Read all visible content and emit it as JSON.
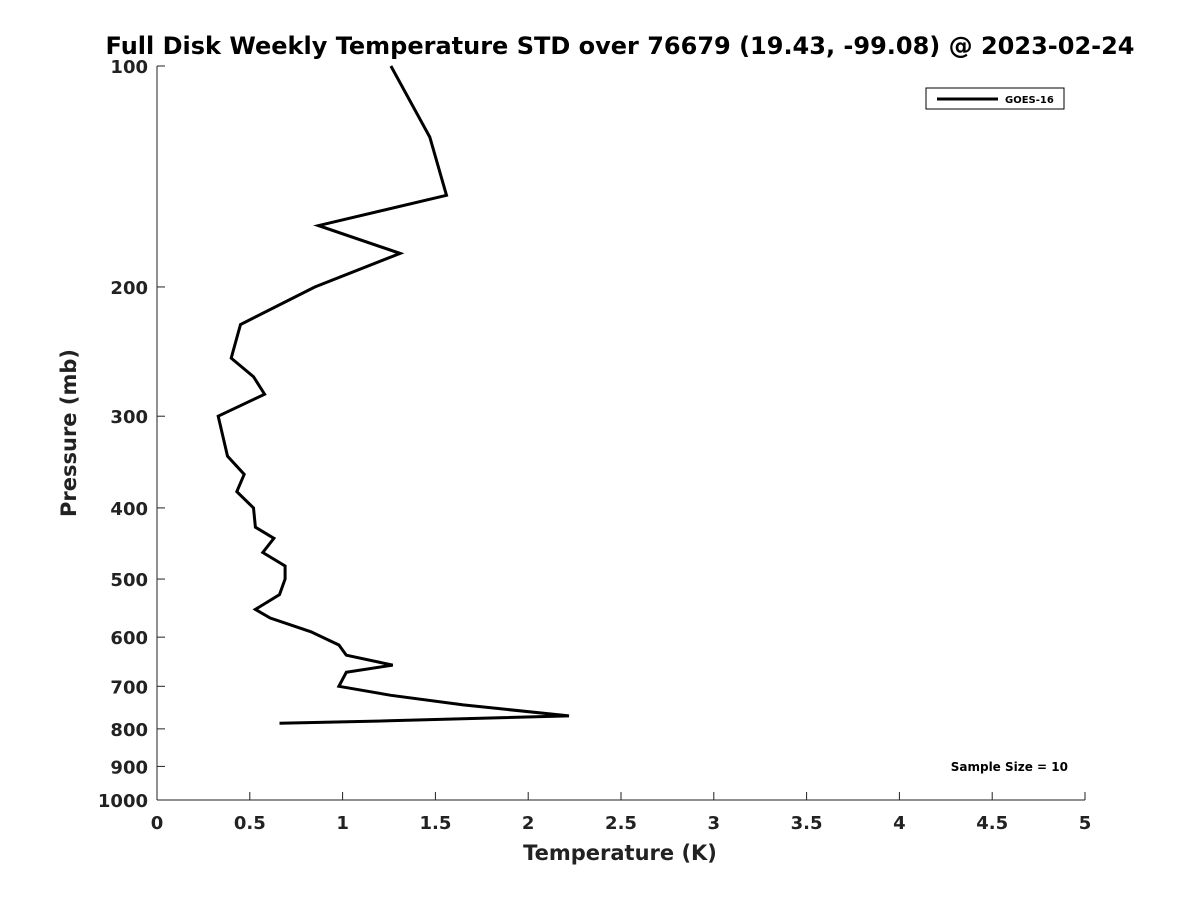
{
  "chart_data": {
    "type": "line",
    "title": "Full Disk Weekly Temperature STD over 76679 (19.43, -99.08) @ 2023-02-24",
    "xlabel": "Temperature (K)",
    "ylabel": "Pressure (mb)",
    "xlim": [
      0,
      5
    ],
    "ylim": [
      100,
      1000
    ],
    "yscale": "log",
    "y_reversed": true,
    "xticks": [
      0,
      0.5,
      1,
      1.5,
      2,
      2.5,
      3,
      3.5,
      4,
      4.5,
      5
    ],
    "xtick_labels": [
      "0",
      "0.5",
      "1",
      "1.5",
      "2",
      "2.5",
      "3",
      "3.5",
      "4",
      "4.5",
      "5"
    ],
    "yticks": [
      100,
      200,
      300,
      400,
      500,
      600,
      700,
      800,
      900,
      1000
    ],
    "ytick_labels": [
      "100",
      "200",
      "300",
      "400",
      "500",
      "600",
      "700",
      "800",
      "900",
      "1000"
    ],
    "grid": false,
    "legend_position": "top-right",
    "series": [
      {
        "name": "GOES-16",
        "color": "#000000",
        "points": [
          {
            "x": 1.26,
            "p": 100
          },
          {
            "x": 1.47,
            "p": 125
          },
          {
            "x": 1.56,
            "p": 150
          },
          {
            "x": 0.87,
            "p": 165
          },
          {
            "x": 1.31,
            "p": 180
          },
          {
            "x": 0.85,
            "p": 200
          },
          {
            "x": 0.45,
            "p": 225
          },
          {
            "x": 0.4,
            "p": 250
          },
          {
            "x": 0.52,
            "p": 265
          },
          {
            "x": 0.58,
            "p": 280
          },
          {
            "x": 0.33,
            "p": 300
          },
          {
            "x": 0.38,
            "p": 340
          },
          {
            "x": 0.47,
            "p": 360
          },
          {
            "x": 0.43,
            "p": 380
          },
          {
            "x": 0.52,
            "p": 400
          },
          {
            "x": 0.53,
            "p": 425
          },
          {
            "x": 0.63,
            "p": 440
          },
          {
            "x": 0.57,
            "p": 460
          },
          {
            "x": 0.69,
            "p": 480
          },
          {
            "x": 0.69,
            "p": 500
          },
          {
            "x": 0.66,
            "p": 525
          },
          {
            "x": 0.53,
            "p": 550
          },
          {
            "x": 0.61,
            "p": 565
          },
          {
            "x": 0.83,
            "p": 590
          },
          {
            "x": 0.98,
            "p": 615
          },
          {
            "x": 1.02,
            "p": 635
          },
          {
            "x": 1.27,
            "p": 655
          },
          {
            "x": 1.02,
            "p": 670
          },
          {
            "x": 0.98,
            "p": 700
          },
          {
            "x": 1.26,
            "p": 720
          },
          {
            "x": 1.65,
            "p": 742
          },
          {
            "x": 2.22,
            "p": 768
          },
          {
            "x": 1.25,
            "p": 780
          },
          {
            "x": 0.66,
            "p": 786
          }
        ]
      }
    ],
    "annotations": [
      "Sample Size = 10"
    ]
  }
}
